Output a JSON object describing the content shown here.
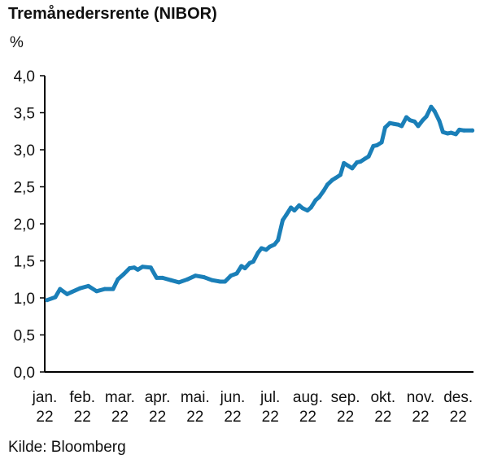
{
  "chart_data": {
    "type": "line",
    "title": "Tremånedersrente (NIBOR)",
    "ylabel": "%",
    "source": "Kilde: Bloomberg",
    "ylim": [
      0,
      4.0
    ],
    "y_ticks": [
      "0,0",
      "0,5",
      "1,0",
      "1,5",
      "2,0",
      "2,5",
      "3,0",
      "3,5",
      "4,0"
    ],
    "x_ticks": [
      {
        "month": "jan.",
        "year": "22"
      },
      {
        "month": "feb.",
        "year": "22"
      },
      {
        "month": "mar.",
        "year": "22"
      },
      {
        "month": "apr.",
        "year": "22"
      },
      {
        "month": "mai.",
        "year": "22"
      },
      {
        "month": "jun.",
        "year": "22"
      },
      {
        "month": "jul.",
        "year": "22"
      },
      {
        "month": "aug.",
        "year": "22"
      },
      {
        "month": "sep.",
        "year": "22"
      },
      {
        "month": "okt.",
        "year": "22"
      },
      {
        "month": "nov.",
        "year": "22"
      },
      {
        "month": "des.",
        "year": "22"
      }
    ],
    "grid": false,
    "line_color": "#1a7fb8",
    "series": [
      {
        "x": [
          "2022-01-03",
          "2022-01-10",
          "2022-01-14",
          "2022-01-20",
          "2022-01-24",
          "2022-01-31",
          "2022-02-07",
          "2022-02-14",
          "2022-02-21",
          "2022-02-28",
          "2022-03-04",
          "2022-03-09",
          "2022-03-14",
          "2022-03-18",
          "2022-03-21",
          "2022-03-25",
          "2022-04-01",
          "2022-04-06",
          "2022-04-11",
          "2022-04-18",
          "2022-04-25",
          "2022-05-02",
          "2022-05-09",
          "2022-05-16",
          "2022-05-23",
          "2022-05-30",
          "2022-06-03",
          "2022-06-08",
          "2022-06-13",
          "2022-06-17",
          "2022-06-20",
          "2022-06-24",
          "2022-06-27",
          "2022-07-01",
          "2022-07-04",
          "2022-07-08",
          "2022-07-11",
          "2022-07-15",
          "2022-07-18",
          "2022-07-22",
          "2022-07-25",
          "2022-07-29",
          "2022-08-01",
          "2022-08-05",
          "2022-08-08",
          "2022-08-12",
          "2022-08-15",
          "2022-08-19",
          "2022-08-22",
          "2022-08-26",
          "2022-08-29",
          "2022-09-02",
          "2022-09-05",
          "2022-09-09",
          "2022-09-12",
          "2022-09-16",
          "2022-09-19",
          "2022-09-23",
          "2022-09-26",
          "2022-09-30",
          "2022-10-03",
          "2022-10-07",
          "2022-10-10",
          "2022-10-14",
          "2022-10-17",
          "2022-10-21",
          "2022-10-24",
          "2022-10-28",
          "2022-10-31",
          "2022-11-04",
          "2022-11-07",
          "2022-11-11",
          "2022-11-14",
          "2022-11-18",
          "2022-11-21",
          "2022-11-25",
          "2022-11-28",
          "2022-12-02",
          "2022-12-05",
          "2022-12-09",
          "2022-12-12",
          "2022-12-16",
          "2022-12-19",
          "2022-12-23",
          "2022-12-30"
        ],
        "values": [
          0.97,
          1.01,
          1.12,
          1.05,
          1.08,
          1.13,
          1.16,
          1.09,
          1.12,
          1.12,
          1.25,
          1.32,
          1.4,
          1.41,
          1.38,
          1.42,
          1.41,
          1.27,
          1.27,
          1.24,
          1.21,
          1.25,
          1.3,
          1.28,
          1.24,
          1.22,
          1.22,
          1.3,
          1.33,
          1.43,
          1.4,
          1.47,
          1.49,
          1.61,
          1.67,
          1.65,
          1.69,
          1.72,
          1.78,
          2.05,
          2.12,
          2.22,
          2.18,
          2.25,
          2.21,
          2.18,
          2.22,
          2.32,
          2.36,
          2.45,
          2.53,
          2.59,
          2.62,
          2.66,
          2.82,
          2.78,
          2.75,
          2.83,
          2.84,
          2.88,
          2.91,
          3.05,
          3.06,
          3.1,
          3.3,
          3.36,
          3.35,
          3.34,
          3.32,
          3.44,
          3.4,
          3.38,
          3.32,
          3.4,
          3.45,
          3.58,
          3.52,
          3.39,
          3.24,
          3.22,
          3.23,
          3.21,
          3.27,
          3.26,
          3.26
        ]
      }
    ]
  }
}
